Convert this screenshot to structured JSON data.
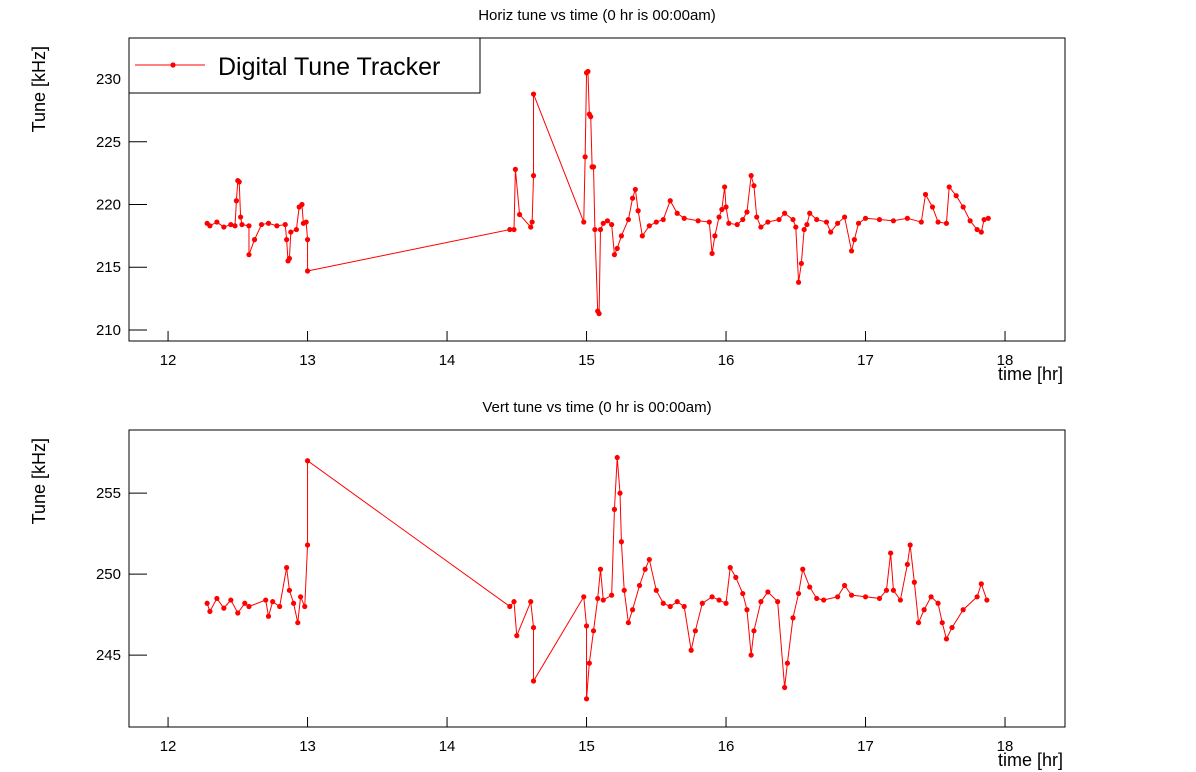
{
  "chart_data": [
    {
      "type": "line",
      "title": "Horiz tune vs time (0 hr is 00:00am)",
      "xlabel": "time [hr]",
      "ylabel": "Tune [kHz]",
      "xlim": [
        11.72,
        18.43
      ],
      "xticks": [
        12,
        13,
        14,
        15,
        16,
        17,
        18
      ],
      "ylim": [
        209.12,
        233.27
      ],
      "yticks": [
        210,
        215,
        220,
        225,
        230
      ],
      "legend": "upper left",
      "series": [
        {
          "name": "Digital Tune Tracker",
          "color": "#ff0000",
          "x": [
            12.28,
            12.3,
            12.35,
            12.4,
            12.45,
            12.48,
            12.49,
            12.5,
            12.51,
            12.52,
            12.53,
            12.58,
            12.58,
            12.62,
            12.67,
            12.72,
            12.78,
            12.84,
            12.85,
            12.86,
            12.87,
            12.88,
            12.92,
            12.94,
            12.96,
            12.97,
            12.99,
            13.0,
            13.0,
            14.45,
            14.48,
            14.49,
            14.52,
            14.6,
            14.61,
            14.62,
            14.62,
            14.98,
            14.99,
            15.0,
            15.01,
            15.02,
            15.03,
            15.04,
            15.05,
            15.06,
            15.08,
            15.09,
            15.1,
            15.12,
            15.15,
            15.18,
            15.2,
            15.22,
            15.25,
            15.3,
            15.33,
            15.35,
            15.37,
            15.4,
            15.45,
            15.5,
            15.55,
            15.6,
            15.65,
            15.7,
            15.8,
            15.88,
            15.9,
            15.92,
            15.95,
            15.97,
            15.99,
            16.0,
            16.02,
            16.08,
            16.12,
            16.15,
            16.18,
            16.2,
            16.22,
            16.25,
            16.3,
            16.38,
            16.42,
            16.48,
            16.5,
            16.52,
            16.54,
            16.56,
            16.58,
            16.6,
            16.65,
            16.72,
            16.75,
            16.8,
            16.85,
            16.9,
            16.92,
            16.95,
            17.0,
            17.1,
            17.2,
            17.3,
            17.4,
            17.43,
            17.48,
            17.52,
            17.58,
            17.6,
            17.65,
            17.7,
            17.75,
            17.8,
            17.83,
            17.85,
            17.88
          ],
          "values": [
            218.5,
            218.3,
            218.6,
            218.2,
            218.4,
            218.3,
            220.3,
            221.9,
            221.8,
            219.0,
            218.4,
            218.3,
            216.0,
            217.2,
            218.4,
            218.5,
            218.3,
            218.4,
            217.2,
            215.5,
            215.7,
            217.8,
            218.0,
            219.8,
            220.0,
            218.5,
            218.6,
            217.2,
            214.7,
            218.0,
            218.0,
            222.8,
            219.2,
            218.2,
            218.6,
            222.3,
            228.8,
            218.6,
            223.8,
            230.5,
            230.6,
            227.2,
            227.0,
            223.0,
            223.0,
            218.0,
            211.5,
            211.3,
            218.0,
            218.5,
            218.7,
            218.4,
            216.0,
            216.5,
            217.5,
            218.8,
            220.5,
            221.2,
            219.5,
            217.5,
            218.3,
            218.6,
            218.8,
            220.3,
            219.3,
            218.9,
            218.7,
            218.6,
            216.1,
            217.5,
            219.0,
            219.6,
            221.4,
            219.8,
            218.5,
            218.4,
            218.8,
            219.4,
            222.3,
            221.5,
            219.0,
            218.2,
            218.6,
            218.8,
            219.3,
            218.8,
            218.2,
            213.8,
            215.3,
            218.0,
            218.4,
            219.3,
            218.8,
            218.6,
            217.8,
            218.5,
            219.0,
            216.3,
            217.2,
            218.5,
            218.9,
            218.8,
            218.7,
            218.9,
            218.6,
            220.8,
            219.8,
            218.6,
            218.5,
            221.4,
            220.7,
            219.8,
            218.7,
            218.0,
            217.8,
            218.8,
            218.9
          ]
        }
      ]
    },
    {
      "type": "line",
      "title": "Vert tune vs time (0 hr is 00:00am)",
      "xlabel": "time [hr]",
      "ylabel": "Tune [kHz]",
      "xlim": [
        11.72,
        18.43
      ],
      "xticks": [
        12,
        13,
        14,
        15,
        16,
        17,
        18
      ],
      "ylim": [
        240.56,
        258.9
      ],
      "yticks": [
        245,
        250,
        255
      ],
      "series": [
        {
          "color": "#ff0000",
          "x": [
            12.28,
            12.3,
            12.35,
            12.4,
            12.45,
            12.5,
            12.55,
            12.58,
            12.7,
            12.72,
            12.75,
            12.8,
            12.85,
            12.87,
            12.9,
            12.93,
            12.95,
            12.98,
            13.0,
            13.0,
            14.45,
            14.48,
            14.5,
            14.6,
            14.62,
            14.62,
            14.98,
            15.0,
            15.0,
            15.02,
            15.05,
            15.08,
            15.1,
            15.12,
            15.18,
            15.2,
            15.22,
            15.24,
            15.25,
            15.27,
            15.3,
            15.33,
            15.38,
            15.42,
            15.45,
            15.5,
            15.55,
            15.6,
            15.65,
            15.7,
            15.75,
            15.78,
            15.83,
            15.9,
            15.95,
            16.0,
            16.03,
            16.07,
            16.12,
            16.15,
            16.18,
            16.2,
            16.25,
            16.3,
            16.37,
            16.42,
            16.44,
            16.48,
            16.52,
            16.55,
            16.6,
            16.65,
            16.7,
            16.8,
            16.85,
            16.9,
            17.0,
            17.1,
            17.15,
            17.18,
            17.2,
            17.25,
            17.3,
            17.32,
            17.35,
            17.38,
            17.42,
            17.47,
            17.52,
            17.55,
            17.58,
            17.62,
            17.7,
            17.8,
            17.83,
            17.87
          ],
          "values": [
            248.2,
            247.7,
            248.5,
            247.9,
            248.4,
            247.6,
            248.2,
            248.0,
            248.4,
            247.4,
            248.3,
            248.0,
            250.4,
            249.0,
            248.2,
            247.0,
            248.6,
            248.0,
            251.8,
            257.0,
            248.0,
            248.3,
            246.2,
            248.3,
            246.7,
            243.4,
            248.6,
            246.8,
            242.3,
            244.5,
            246.5,
            248.5,
            250.3,
            248.4,
            248.7,
            254.0,
            257.2,
            255.0,
            252.0,
            249.0,
            247.0,
            247.8,
            249.3,
            250.3,
            250.9,
            249.0,
            248.2,
            248.0,
            248.3,
            248.0,
            245.3,
            246.5,
            248.2,
            248.6,
            248.4,
            248.2,
            250.4,
            249.8,
            248.8,
            247.8,
            245.0,
            246.5,
            248.3,
            248.9,
            248.3,
            243.0,
            244.5,
            247.3,
            248.8,
            250.3,
            249.2,
            248.5,
            248.4,
            248.6,
            249.3,
            248.7,
            248.6,
            248.5,
            249.0,
            251.3,
            249.0,
            248.4,
            250.6,
            251.8,
            249.5,
            247.0,
            247.8,
            248.6,
            248.2,
            247.0,
            246.0,
            246.7,
            247.8,
            248.6,
            249.4,
            248.4
          ]
        }
      ]
    }
  ]
}
